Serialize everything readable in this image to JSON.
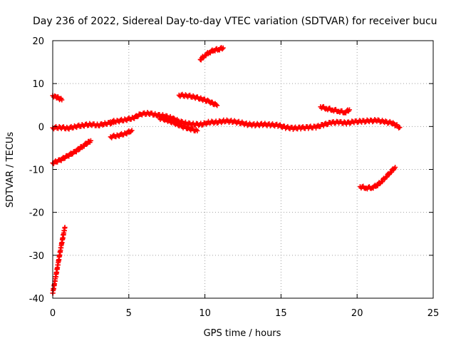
{
  "chart_data": {
    "type": "scatter",
    "title": "Day 236 of 2022, Sidereal Day-to-day VTEC variation (SDTVAR) for receiver bucu",
    "xlabel": "GPS time / hours",
    "ylabel": "SDTVAR / TECUs",
    "xlim": [
      0,
      25
    ],
    "ylim": [
      -40,
      20
    ],
    "x_ticks": [
      0,
      5,
      10,
      15,
      20,
      25
    ],
    "y_ticks": [
      -40,
      -30,
      -20,
      -10,
      0,
      10,
      20
    ],
    "grid": true,
    "marker": "plus",
    "series": [
      {
        "name": "SDTVAR",
        "color": "#ff0000",
        "segments": [
          {
            "x": [
              0.0,
              0.2,
              0.4,
              0.6
            ],
            "y": [
              7.2,
              7.0,
              6.6,
              6.2
            ]
          },
          {
            "x": [
              0.0,
              0.2,
              0.4,
              0.6,
              0.8
            ],
            "y": [
              -38.8,
              -35.0,
              -31.0,
              -27.0,
              -23.5
            ]
          },
          {
            "x": [
              0.0,
              0.5,
              1.0,
              1.5,
              2.0,
              2.5
            ],
            "y": [
              -8.5,
              -7.8,
              -6.8,
              -5.8,
              -4.5,
              -3.3
            ]
          },
          {
            "x": [
              0.0,
              0.5,
              1.0,
              1.5,
              2.0,
              2.5,
              3.0,
              3.5,
              4.0
            ],
            "y": [
              -0.3,
              -0.2,
              -0.4,
              0.0,
              0.3,
              0.5,
              0.3,
              0.7,
              0.9
            ]
          },
          {
            "x": [
              3.8,
              4.3,
              4.8,
              5.2
            ],
            "y": [
              -2.4,
              -2.1,
              -1.6,
              -0.9
            ]
          },
          {
            "x": [
              3.8,
              4.3,
              4.8,
              5.3,
              5.8,
              6.3,
              6.8,
              7.3,
              7.8,
              8.3,
              8.8,
              9.3,
              9.8,
              10.3,
              10.8,
              11.3,
              11.8,
              12.3,
              12.8,
              13.3,
              13.8,
              14.3,
              14.8,
              15.3,
              15.8,
              16.3,
              16.8,
              17.3,
              17.8,
              18.3,
              18.8,
              19.3,
              19.8,
              20.3,
              20.8,
              21.3,
              21.8,
              22.3,
              22.8
            ],
            "y": [
              1.1,
              1.3,
              1.6,
              2.0,
              2.9,
              3.1,
              2.7,
              2.5,
              2.0,
              1.2,
              0.7,
              0.5,
              0.5,
              1.0,
              1.0,
              1.3,
              1.2,
              0.9,
              0.5,
              0.4,
              0.5,
              0.4,
              0.3,
              -0.2,
              -0.4,
              -0.3,
              -0.2,
              -0.1,
              0.4,
              0.9,
              1.0,
              0.8,
              1.1,
              1.2,
              1.3,
              1.4,
              1.1,
              0.8,
              -0.2
            ]
          },
          {
            "x": [
              7.0,
              7.5,
              8.0,
              8.5,
              9.0,
              9.5
            ],
            "y": [
              2.0,
              1.5,
              0.8,
              0.0,
              -0.5,
              -1.0
            ]
          },
          {
            "x": [
              8.3,
              8.8,
              9.3,
              9.8,
              10.3,
              10.8
            ],
            "y": [
              7.3,
              7.2,
              6.9,
              6.4,
              5.8,
              4.9
            ]
          },
          {
            "x": [
              9.7,
              10.0,
              10.3,
              10.6,
              10.9,
              11.2
            ],
            "y": [
              15.6,
              16.6,
              17.3,
              17.8,
              18.0,
              18.3
            ]
          },
          {
            "x": [
              17.6,
              18.0,
              18.4,
              18.8,
              19.2,
              19.5
            ],
            "y": [
              4.6,
              4.2,
              3.9,
              3.6,
              3.3,
              3.9
            ]
          },
          {
            "x": [
              20.2,
              20.6,
              21.0,
              21.3,
              21.6,
              21.9,
              22.2,
              22.5
            ],
            "y": [
              -14.0,
              -14.3,
              -14.2,
              -13.7,
              -12.8,
              -11.7,
              -10.6,
              -9.5
            ]
          }
        ]
      }
    ]
  }
}
